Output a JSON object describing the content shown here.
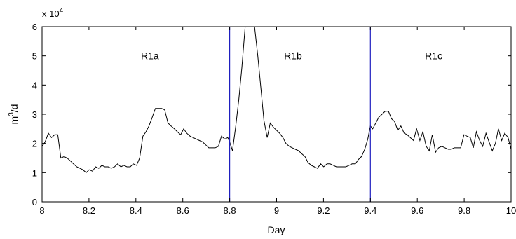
{
  "chart_data": {
    "type": "line",
    "xlabel": "Day",
    "ylabel_base": "m",
    "ylabel_sup": "3",
    "ylabel_tail": "/d",
    "scale_base": "x 10",
    "scale_exp": "4",
    "xlim": [
      8,
      10
    ],
    "ylim": [
      0,
      6
    ],
    "x_ticks": [
      8,
      8.2,
      8.4,
      8.6,
      8.8,
      9,
      9.2,
      9.4,
      9.6,
      9.8,
      10
    ],
    "x_tick_labels": [
      "8",
      "8.2",
      "8.4",
      "8.6",
      "8.8",
      "9",
      "9.2",
      "9.4",
      "9.6",
      "9.8",
      "10"
    ],
    "y_ticks": [
      0,
      1,
      2,
      3,
      4,
      5,
      6
    ],
    "y_tick_labels": [
      "0",
      "1",
      "2",
      "3",
      "4",
      "5",
      "6"
    ],
    "grid": false,
    "line_color": "#000000",
    "divider_color": "#1f1fbf",
    "dividers": [
      8.8,
      9.4
    ],
    "regions": [
      {
        "label": "R1a",
        "x": 8.46,
        "y": 5.0
      },
      {
        "label": "R1b",
        "x": 9.07,
        "y": 5.0
      },
      {
        "label": "R1c",
        "x": 9.67,
        "y": 5.0
      }
    ],
    "series": [
      {
        "x": [
          8.0,
          8.013,
          8.027,
          8.04,
          8.054,
          8.067,
          8.08,
          8.094,
          8.107,
          8.121,
          8.134,
          8.148,
          8.161,
          8.174,
          8.188,
          8.201,
          8.215,
          8.228,
          8.242,
          8.255,
          8.268,
          8.282,
          8.295,
          8.309,
          8.322,
          8.336,
          8.349,
          8.362,
          8.376,
          8.389,
          8.403,
          8.416,
          8.43,
          8.443,
          8.456,
          8.47,
          8.483,
          8.497,
          8.51,
          8.523,
          8.537,
          8.55,
          8.564,
          8.577,
          8.591,
          8.604,
          8.617,
          8.631,
          8.644,
          8.658,
          8.671,
          8.685,
          8.698,
          8.711,
          8.725,
          8.738,
          8.752,
          8.765,
          8.779,
          8.792,
          8.8,
          8.812,
          8.826,
          8.839,
          8.852,
          8.866,
          8.879,
          8.893,
          8.906,
          8.92,
          8.933,
          8.946,
          8.96,
          8.973,
          8.987,
          9.0,
          9.013,
          9.027,
          9.04,
          9.054,
          9.067,
          9.08,
          9.094,
          9.107,
          9.121,
          9.134,
          9.148,
          9.161,
          9.174,
          9.188,
          9.201,
          9.215,
          9.228,
          9.242,
          9.255,
          9.268,
          9.282,
          9.295,
          9.309,
          9.322,
          9.336,
          9.349,
          9.362,
          9.376,
          9.389,
          9.4,
          9.41,
          9.423,
          9.436,
          9.45,
          9.463,
          9.477,
          9.49,
          9.503,
          9.517,
          9.53,
          9.544,
          9.557,
          9.57,
          9.584,
          9.597,
          9.611,
          9.624,
          9.638,
          9.651,
          9.664,
          9.678,
          9.691,
          9.705,
          9.718,
          9.732,
          9.745,
          9.758,
          9.772,
          9.785,
          9.799,
          9.812,
          9.826,
          9.839,
          9.852,
          9.866,
          9.879,
          9.893,
          9.906,
          9.92,
          9.933,
          9.946,
          9.96,
          9.973,
          9.987,
          10.0
        ],
        "values": [
          1.9,
          2.05,
          2.35,
          2.2,
          2.3,
          2.3,
          1.5,
          1.55,
          1.5,
          1.4,
          1.3,
          1.2,
          1.15,
          1.1,
          1.0,
          1.1,
          1.05,
          1.2,
          1.15,
          1.25,
          1.2,
          1.2,
          1.15,
          1.2,
          1.3,
          1.2,
          1.25,
          1.2,
          1.2,
          1.3,
          1.25,
          1.5,
          2.25,
          2.4,
          2.6,
          2.9,
          3.2,
          3.2,
          3.2,
          3.15,
          2.7,
          2.6,
          2.5,
          2.4,
          2.3,
          2.5,
          2.35,
          2.25,
          2.2,
          2.15,
          2.1,
          2.05,
          1.95,
          1.85,
          1.85,
          1.85,
          1.9,
          2.25,
          2.15,
          2.2,
          2.05,
          1.75,
          2.6,
          3.5,
          4.6,
          6.0,
          6.0,
          6.0,
          6.0,
          5.0,
          3.9,
          2.8,
          2.2,
          2.7,
          2.55,
          2.45,
          2.35,
          2.2,
          2.0,
          1.9,
          1.85,
          1.8,
          1.75,
          1.65,
          1.55,
          1.35,
          1.25,
          1.2,
          1.15,
          1.3,
          1.2,
          1.3,
          1.3,
          1.25,
          1.2,
          1.2,
          1.2,
          1.2,
          1.25,
          1.3,
          1.3,
          1.45,
          1.55,
          1.8,
          2.15,
          2.6,
          2.5,
          2.7,
          2.9,
          3.0,
          3.1,
          3.1,
          2.85,
          2.75,
          2.45,
          2.6,
          2.35,
          2.3,
          2.2,
          2.1,
          2.5,
          2.1,
          2.4,
          1.9,
          1.75,
          2.3,
          1.7,
          1.85,
          1.9,
          1.85,
          1.8,
          1.8,
          1.85,
          1.85,
          1.85,
          2.3,
          2.25,
          2.2,
          1.85,
          2.4,
          2.1,
          1.9,
          2.35,
          2.05,
          1.75,
          2.0,
          2.5,
          2.1,
          2.35,
          2.2,
          1.8
        ]
      }
    ]
  }
}
